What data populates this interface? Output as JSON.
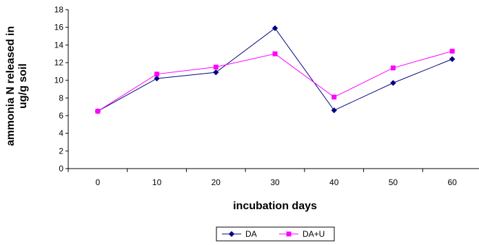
{
  "chart_data": {
    "type": "line",
    "title": "",
    "xlabel": "incubation days",
    "ylabel_lines": [
      "ammonia N released in",
      "ug/g soil"
    ],
    "categories": [
      "0",
      "10",
      "20",
      "30",
      "40",
      "50",
      "60"
    ],
    "yticks": [
      "0",
      "2",
      "4",
      "6",
      "8",
      "10",
      "12",
      "14",
      "16",
      "18"
    ],
    "ylim": [
      0,
      18
    ],
    "grid": false,
    "legend_position": "bottom-center",
    "series": [
      {
        "name": "DA",
        "color": "#000080",
        "marker": "diamond",
        "values": [
          6.5,
          10.2,
          10.9,
          15.9,
          6.6,
          9.7,
          12.4
        ]
      },
      {
        "name": "DA+U",
        "color": "#FF00FF",
        "marker": "square",
        "values": [
          6.5,
          10.7,
          11.5,
          13.0,
          8.1,
          11.4,
          13.3
        ]
      }
    ]
  }
}
